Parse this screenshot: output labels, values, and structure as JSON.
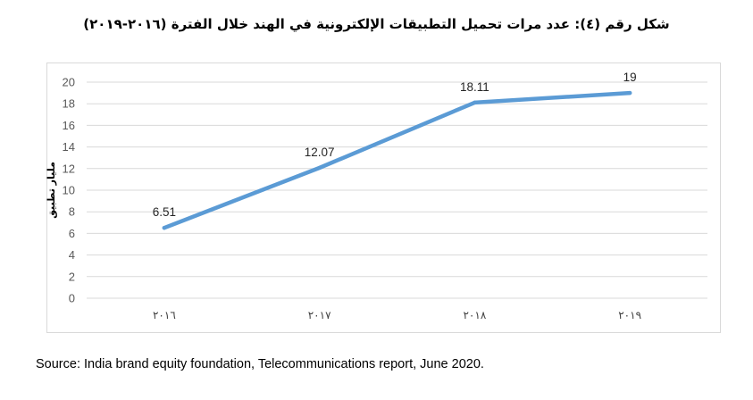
{
  "title": "شكل رقم (٤): عدد مرات تحميل التطبيقات الإلكترونية في الهند خلال الفترة (٢٠١٦-٢٠١٩)",
  "source": "Source: India brand equity foundation, Telecommunications report, June 2020.",
  "chart_data": {
    "type": "line",
    "categories": [
      "٢٠١٦",
      "٢٠١٧",
      "٢٠١٨",
      "٢٠١٩"
    ],
    "series": [
      {
        "values": [
          6.51,
          12.07,
          18.11,
          19
        ],
        "labels": [
          "6.51",
          "12.07",
          "18.11",
          "19"
        ]
      }
    ],
    "ylabel": "مليار تطبيق",
    "ylim": [
      0,
      20
    ],
    "yticks": [
      "0",
      "2",
      "4",
      "6",
      "8",
      "10",
      "12",
      "14",
      "16",
      "18",
      "20"
    ],
    "grid": true,
    "line_color": "#5b9bd5",
    "grid_color": "#d9d9d9",
    "frame_color": "#d9d9d9"
  }
}
